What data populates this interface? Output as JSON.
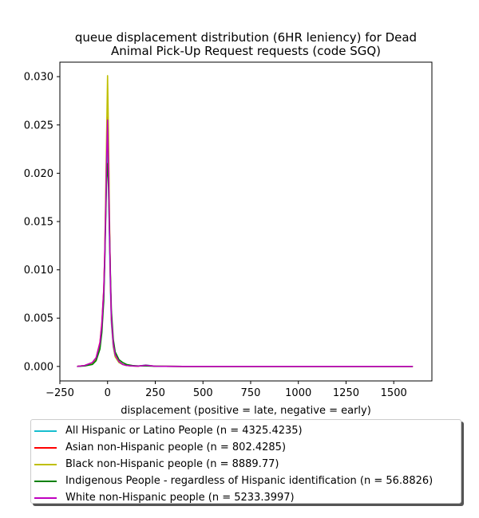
{
  "chart_data": {
    "type": "line",
    "title_line1": "queue displacement distribution (6HR leniency) for Dead",
    "title_line2": "Animal Pick-Up Request  requests (code SGQ)",
    "xlabel": "displacement (positive = late, negative = early)",
    "ylabel": "",
    "xlim": [
      -250,
      1700
    ],
    "ylim": [
      -0.0015,
      0.0315
    ],
    "xticks": [
      -250,
      0,
      250,
      500,
      750,
      1000,
      1250,
      1500
    ],
    "xtick_labels": [
      "−250",
      "0",
      "250",
      "500",
      "750",
      "1000",
      "1250",
      "1500"
    ],
    "yticks": [
      0.0,
      0.005,
      0.01,
      0.015,
      0.02,
      0.025,
      0.03
    ],
    "ytick_labels": [
      "0.000",
      "0.005",
      "0.010",
      "0.015",
      "0.020",
      "0.025",
      "0.030"
    ],
    "grid": false,
    "legend_position": "below",
    "x": [
      -160,
      -120,
      -80,
      -60,
      -40,
      -30,
      -20,
      -15,
      -10,
      -5,
      0,
      5,
      10,
      15,
      20,
      30,
      40,
      60,
      80,
      100,
      130,
      160,
      200,
      250,
      300,
      400,
      600,
      800,
      1000,
      1200,
      1400,
      1600
    ],
    "series": [
      {
        "name": "All Hispanic or Latino People (n = 4325.4235)",
        "color": "#17becf",
        "values": [
          0.0,
          8e-05,
          0.00035,
          0.0008,
          0.0022,
          0.004,
          0.0075,
          0.011,
          0.0155,
          0.0205,
          0.0235,
          0.019,
          0.013,
          0.008,
          0.0045,
          0.002,
          0.001,
          0.0004,
          0.0002,
          0.0001,
          5e-05,
          3e-05,
          0.00015,
          2e-05,
          1e-05,
          0.0,
          0.0,
          0.0,
          0.0,
          0.0,
          0.0,
          0.0
        ]
      },
      {
        "name": "Asian non-Hispanic people (n = 802.4285)",
        "color": "#ff0000",
        "values": [
          0.0,
          0.0001,
          0.0004,
          0.0009,
          0.0025,
          0.0045,
          0.008,
          0.0115,
          0.0165,
          0.022,
          0.0258,
          0.021,
          0.0145,
          0.009,
          0.005,
          0.0023,
          0.0012,
          0.0005,
          0.0002,
          0.0001,
          5e-05,
          3e-05,
          0.00012,
          2e-05,
          1e-05,
          0.0,
          0.0,
          0.0,
          0.0,
          0.0,
          0.0,
          0.0
        ]
      },
      {
        "name": "Black non-Hispanic people (n = 8889.77)",
        "color": "#bfbf00",
        "values": [
          0.0,
          0.0001,
          0.0003,
          0.0007,
          0.002,
          0.0038,
          0.0075,
          0.0115,
          0.0175,
          0.024,
          0.0301,
          0.024,
          0.0155,
          0.009,
          0.0048,
          0.0021,
          0.001,
          0.0004,
          0.0002,
          0.0001,
          5e-05,
          3e-05,
          0.0001,
          2e-05,
          1e-05,
          0.0,
          0.0,
          0.0,
          0.0,
          0.0,
          0.0,
          0.0
        ]
      },
      {
        "name": "Indigenous People - regardless of Hispanic identification (n = 56.8826)",
        "color": "#008000",
        "values": [
          0.0,
          5e-05,
          0.0002,
          0.0006,
          0.0018,
          0.0035,
          0.0068,
          0.0105,
          0.015,
          0.0195,
          0.021,
          0.0185,
          0.014,
          0.0095,
          0.0058,
          0.0028,
          0.0015,
          0.0007,
          0.0004,
          0.0002,
          0.0001,
          5e-05,
          5e-05,
          2e-05,
          1e-05,
          0.0,
          0.0,
          0.0,
          0.0,
          0.0,
          0.0,
          0.0
        ]
      },
      {
        "name": "White non-Hispanic people (n = 5233.3997)",
        "color": "#bf00bf",
        "values": [
          0.0,
          0.0001,
          0.0004,
          0.0009,
          0.0024,
          0.0043,
          0.0078,
          0.0113,
          0.016,
          0.0215,
          0.0255,
          0.0205,
          0.0142,
          0.0088,
          0.005,
          0.0023,
          0.0012,
          0.0005,
          0.0002,
          0.0001,
          5e-05,
          3e-05,
          0.00012,
          2e-05,
          1e-05,
          0.0,
          0.0,
          0.0,
          0.0,
          0.0,
          0.0,
          0.0
        ]
      }
    ]
  }
}
